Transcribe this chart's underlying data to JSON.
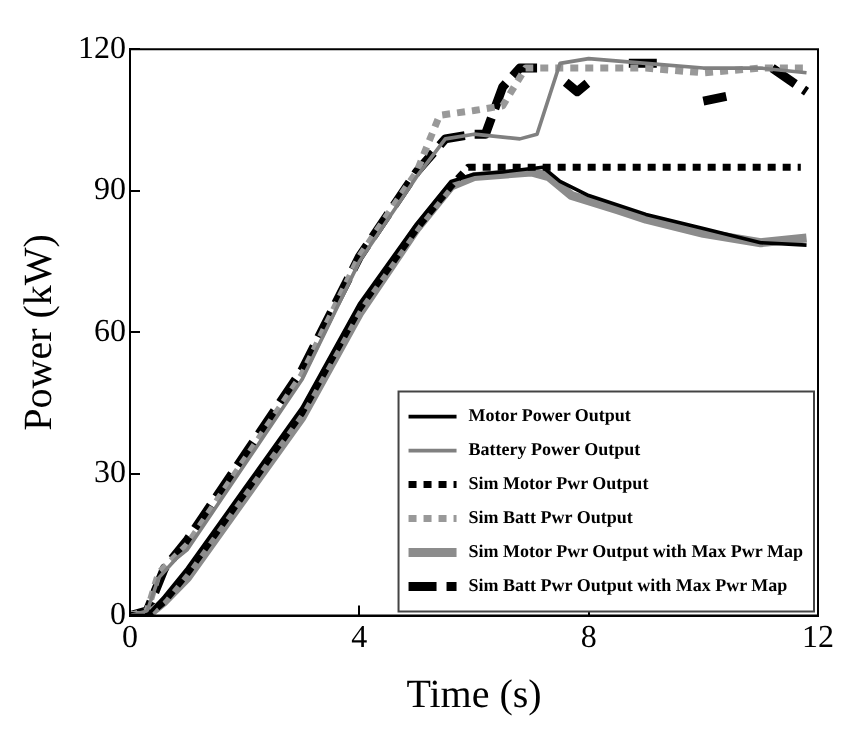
{
  "chart_data": {
    "type": "line",
    "xlabel": "Time (s)",
    "ylabel": "Power (kW)",
    "xlim": [
      0,
      12
    ],
    "ylim": [
      0,
      120
    ],
    "xticks": [
      0,
      4,
      8,
      12
    ],
    "yticks": [
      0,
      30,
      60,
      90,
      120
    ],
    "grid": false,
    "legend": "bottom right",
    "marker": "none",
    "series": [
      {
        "name": "Motor Power Output",
        "color": "#000000",
        "line_style": "solid",
        "x": [
          0,
          0.3,
          0.6,
          1,
          2,
          3,
          4,
          5,
          5.6,
          6,
          6.5,
          7.2,
          7.5,
          8,
          9,
          10,
          11,
          11.8
        ],
        "values": [
          0,
          0,
          4,
          10,
          27,
          44,
          66,
          83,
          92,
          93.5,
          94,
          95,
          92,
          89,
          85,
          82,
          79,
          78.5
        ]
      },
      {
        "name": "Battery Power Output",
        "color": "#808080",
        "line_style": "solid",
        "x": [
          0,
          0.3,
          0.5,
          0.8,
          1,
          2,
          3,
          4,
          5,
          5.5,
          6,
          6.8,
          7.1,
          7.5,
          8,
          9,
          10,
          11,
          11.8
        ],
        "values": [
          0,
          1,
          8,
          12,
          14,
          32,
          50,
          75,
          93,
          101,
          102,
          101,
          102,
          117,
          118,
          117,
          116,
          116,
          115
        ]
      },
      {
        "name": "Sim Motor Pwr Output",
        "color": "#000000",
        "line_style": "dotted",
        "x": [
          0,
          0.3,
          0.6,
          1,
          2,
          3,
          4,
          5,
          5.6,
          5.9,
          11.7
        ],
        "values": [
          0,
          0,
          3,
          9,
          26,
          43,
          65,
          82,
          91,
          95,
          95
        ]
      },
      {
        "name": "Sim Batt Pwr Output",
        "color": "#999999",
        "line_style": "dotted",
        "x": [
          0,
          0.3,
          0.5,
          1,
          2,
          3,
          4,
          5,
          5.4,
          6,
          6.5,
          6.9,
          8,
          9,
          10,
          11,
          11.8
        ],
        "values": [
          0,
          1,
          9,
          15,
          33,
          51,
          76,
          94,
          106,
          107,
          108,
          116,
          116,
          116,
          115,
          116,
          116
        ]
      },
      {
        "name": "Sim Motor Pwr Output with Max Pwr Map",
        "color": "#8c8c8c",
        "line_style": "solid",
        "x": [
          0,
          0.3,
          0.6,
          1,
          2,
          3,
          4,
          5,
          5.6,
          6,
          7,
          7.3,
          7.7,
          8.5,
          9,
          10,
          11,
          11.8
        ],
        "values": [
          0,
          0,
          3,
          8,
          25,
          42,
          64,
          82,
          91,
          93,
          94,
          93,
          89,
          86,
          84,
          81,
          79,
          80
        ]
      },
      {
        "name": "Sim Batt Pwr Output with Max Pwr Map",
        "color": "#000000",
        "line_style": "dashed",
        "x": [
          0,
          0.3,
          0.6,
          1,
          2,
          3,
          4,
          5,
          5.5,
          6,
          6.2,
          6.5,
          6.8,
          7.1,
          7.3,
          7.6,
          7.8,
          8,
          8.3,
          8.7,
          9.3,
          9.6,
          10,
          10.4,
          10.8,
          11.2,
          11.8
        ],
        "values": [
          0,
          1,
          10,
          16,
          34,
          52,
          76,
          94,
          101,
          102,
          102,
          112,
          116,
          116,
          null,
          113,
          111,
          113,
          null,
          117,
          117,
          null,
          109,
          110,
          null,
          116,
          111
        ]
      }
    ]
  }
}
